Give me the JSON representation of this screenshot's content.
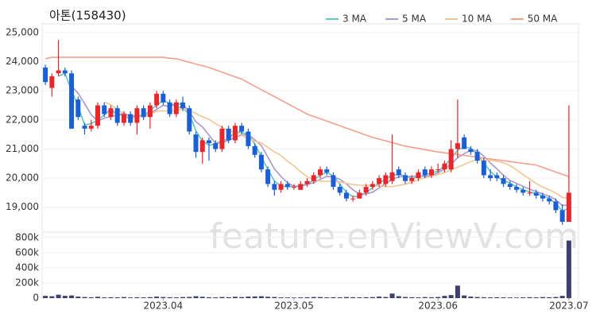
{
  "chart_data": {
    "type": "candlestick",
    "title": "아톤(158430)",
    "watermark": "feature.enViewV.com",
    "up_color": "#e8262b",
    "down_color": "#1a5fd6",
    "grid": true,
    "legend": "top-right",
    "categories": [
      null,
      null,
      null,
      null,
      null,
      null,
      null,
      null,
      null,
      null,
      null,
      null,
      null,
      null,
      null,
      null,
      null,
      null,
      "2023.04",
      null,
      null,
      null,
      null,
      null,
      null,
      null,
      null,
      null,
      null,
      null,
      null,
      null,
      null,
      null,
      null,
      null,
      null,
      null,
      "2023.05",
      null,
      null,
      null,
      null,
      null,
      null,
      null,
      null,
      null,
      null,
      null,
      null,
      null,
      null,
      null,
      null,
      null,
      null,
      null,
      null,
      null,
      "2023.06",
      null,
      null,
      null,
      null,
      null,
      null,
      null,
      null,
      null,
      null,
      null,
      null,
      null,
      null,
      null,
      null,
      null,
      null,
      null,
      "2023.07"
    ],
    "ylim": [
      18200,
      25300
    ],
    "yticks": [
      {
        "value": 19000,
        "label": "19,000"
      },
      {
        "value": 20000,
        "label": "20,000"
      },
      {
        "value": 21000,
        "label": "21,000"
      },
      {
        "value": 22000,
        "label": "22,000"
      },
      {
        "value": 23000,
        "label": "23,000"
      },
      {
        "value": 24000,
        "label": "24,000"
      },
      {
        "value": 25000,
        "label": "25,000"
      }
    ],
    "ohlc": [
      [
        23800,
        23900,
        23200,
        23300
      ],
      [
        23100,
        23600,
        22800,
        23500
      ],
      [
        23600,
        24750,
        23500,
        23700
      ],
      [
        23700,
        23800,
        23500,
        23600
      ],
      [
        23600,
        23700,
        21700,
        21700
      ],
      [
        22700,
        22800,
        22000,
        22100
      ],
      [
        21800,
        21900,
        21500,
        21700
      ],
      [
        21700,
        22000,
        21600,
        21800
      ],
      [
        21800,
        22600,
        21700,
        22500
      ],
      [
        22500,
        22600,
        22100,
        22200
      ],
      [
        22100,
        22500,
        22000,
        22400
      ],
      [
        22400,
        22500,
        21800,
        21900
      ],
      [
        21900,
        22300,
        21800,
        22200
      ],
      [
        22200,
        22300,
        21800,
        21900
      ],
      [
        21900,
        22500,
        21500,
        22400
      ],
      [
        22400,
        22500,
        22000,
        22100
      ],
      [
        22100,
        22600,
        21700,
        22500
      ],
      [
        22500,
        23000,
        22400,
        22900
      ],
      [
        22900,
        23000,
        22500,
        22600
      ],
      [
        22600,
        22700,
        22100,
        22200
      ],
      [
        22200,
        22700,
        22100,
        22600
      ],
      [
        22600,
        22800,
        22300,
        22400
      ],
      [
        22400,
        22500,
        21500,
        21600
      ],
      [
        21500,
        21600,
        20700,
        20900
      ],
      [
        20900,
        21400,
        20500,
        21300
      ],
      [
        21300,
        21400,
        20600,
        21200
      ],
      [
        21200,
        21300,
        20900,
        21000
      ],
      [
        21000,
        21800,
        20900,
        21700
      ],
      [
        21700,
        21800,
        21200,
        21300
      ],
      [
        21300,
        21900,
        21200,
        21800
      ],
      [
        21800,
        21900,
        21500,
        21600
      ],
      [
        21600,
        21700,
        21000,
        21100
      ],
      [
        21100,
        21200,
        20700,
        20800
      ],
      [
        20800,
        20900,
        20200,
        20300
      ],
      [
        20300,
        20400,
        19700,
        19800
      ],
      [
        19800,
        19900,
        19400,
        19600
      ],
      [
        19600,
        19900,
        19500,
        19800
      ],
      [
        19800,
        19900,
        19600,
        19700
      ],
      [
        19700,
        19800,
        19600,
        19700
      ],
      [
        19600,
        19900,
        19600,
        19800
      ],
      [
        19800,
        20000,
        19700,
        19900
      ],
      [
        19900,
        20200,
        19800,
        20100
      ],
      [
        20100,
        20400,
        20000,
        20300
      ],
      [
        20300,
        20400,
        20100,
        20200
      ],
      [
        20100,
        20200,
        19600,
        19700
      ],
      [
        19700,
        19800,
        19400,
        19500
      ],
      [
        19500,
        19600,
        19200,
        19300
      ],
      [
        19300,
        19400,
        19200,
        19300
      ],
      [
        19300,
        19600,
        19300,
        19500
      ],
      [
        19500,
        19800,
        19400,
        19700
      ],
      [
        19700,
        19900,
        19600,
        19800
      ],
      [
        19800,
        20100,
        19700,
        20000
      ],
      [
        19800,
        20200,
        19700,
        20100
      ],
      [
        19900,
        21500,
        19800,
        20200
      ],
      [
        20300,
        20400,
        20000,
        20100
      ],
      [
        20100,
        20200,
        19800,
        19900
      ],
      [
        19900,
        20100,
        19800,
        20000
      ],
      [
        20000,
        20300,
        19900,
        20200
      ],
      [
        20300,
        20400,
        20000,
        20100
      ],
      [
        20100,
        20400,
        20000,
        20300
      ],
      [
        20300,
        20500,
        20200,
        20300
      ],
      [
        20300,
        20600,
        20200,
        20500
      ],
      [
        20300,
        21300,
        20200,
        21000
      ],
      [
        21000,
        22700,
        20700,
        21200
      ],
      [
        21400,
        21500,
        21000,
        21000
      ],
      [
        21000,
        21100,
        20800,
        20900
      ],
      [
        20900,
        21000,
        20500,
        20600
      ],
      [
        20600,
        20700,
        20000,
        20100
      ],
      [
        20100,
        20300,
        19900,
        20000
      ],
      [
        20100,
        20200,
        19900,
        20000
      ],
      [
        20000,
        20100,
        19700,
        19800
      ],
      [
        19800,
        19900,
        19600,
        19700
      ],
      [
        19700,
        19800,
        19500,
        19600
      ],
      [
        19600,
        19700,
        19400,
        19500
      ],
      [
        19500,
        19900,
        19400,
        19500
      ],
      [
        19500,
        19600,
        19300,
        19400
      ],
      [
        19400,
        19500,
        19200,
        19300
      ],
      [
        19300,
        19400,
        19100,
        19200
      ],
      [
        19200,
        19300,
        18800,
        18900
      ],
      [
        18900,
        19100,
        18400,
        18500
      ],
      [
        18500,
        22500,
        18500,
        19500
      ]
    ],
    "series": [
      {
        "name": "3 MA",
        "color": "#5cc8c0",
        "values": [
          null,
          null,
          23500,
          23600,
          23000,
          22470,
          21830,
          21870,
          22000,
          22170,
          22370,
          22170,
          22170,
          22000,
          22170,
          22130,
          22330,
          22500,
          22670,
          22570,
          22470,
          22400,
          22200,
          21630,
          21270,
          21130,
          21170,
          21300,
          21330,
          21600,
          21570,
          21500,
          21170,
          20730,
          20300,
          19900,
          19730,
          19700,
          19730,
          19730,
          19800,
          19930,
          20100,
          20200,
          20070,
          19800,
          19500,
          19370,
          19370,
          19500,
          19670,
          19830,
          19970,
          20100,
          20130,
          20070,
          20000,
          20030,
          20100,
          20200,
          20230,
          20430,
          20670,
          20970,
          21070,
          21030,
          20830,
          20530,
          20230,
          20030,
          19930,
          19830,
          19700,
          19600,
          19530,
          19470,
          19400,
          19300,
          19130,
          18870,
          18970
        ]
      },
      {
        "name": "5 MA",
        "color": "#a898cc",
        "values": [
          null,
          null,
          null,
          null,
          23160,
          22920,
          22560,
          22180,
          21960,
          22060,
          22120,
          22160,
          22240,
          22120,
          22160,
          22100,
          22220,
          22360,
          22500,
          22460,
          22560,
          22540,
          22280,
          21940,
          21760,
          21480,
          21200,
          21220,
          21300,
          21400,
          21480,
          21500,
          21320,
          21120,
          20720,
          20320,
          20060,
          19840,
          19720,
          19720,
          19780,
          19840,
          19960,
          20060,
          20040,
          19960,
          19800,
          19600,
          19460,
          19460,
          19520,
          19660,
          19820,
          19960,
          20040,
          20060,
          20060,
          20080,
          20060,
          20100,
          20180,
          20320,
          20480,
          20700,
          20840,
          20960,
          20940,
          20760,
          20520,
          20320,
          20100,
          19920,
          19820,
          19720,
          19620,
          19540,
          19460,
          19380,
          19260,
          19060,
          19080
        ]
      },
      {
        "name": "10 MA",
        "color": "#f2c694",
        "values": [
          null,
          null,
          null,
          null,
          null,
          null,
          null,
          null,
          null,
          22610,
          22520,
          22360,
          22210,
          22040,
          22110,
          22110,
          22190,
          22300,
          22310,
          22310,
          22330,
          22380,
          22320,
          22220,
          22110,
          22020,
          21870,
          21750,
          21620,
          21580,
          21480,
          21350,
          21270,
          21210,
          21060,
          20900,
          20780,
          20580,
          20420,
          20220,
          20050,
          19950,
          19900,
          19890,
          19880,
          19870,
          19820,
          19780,
          19760,
          19750,
          19740,
          19730,
          19710,
          19710,
          19750,
          19790,
          19860,
          19950,
          20010,
          20070,
          20120,
          20190,
          20280,
          20380,
          20470,
          20570,
          20630,
          20620,
          20610,
          20580,
          20530,
          20430,
          20290,
          20120,
          19970,
          19820,
          19690,
          19600,
          19490,
          19340,
          19310
        ]
      },
      {
        "name": "50 MA",
        "color": "#f4a08e",
        "values": [
          24100,
          24150,
          24150,
          24150,
          24150,
          24150,
          24150,
          24150,
          24150,
          24150,
          24150,
          24150,
          24150,
          24150,
          24150,
          24150,
          24150,
          24150,
          24150,
          24120,
          24100,
          24040,
          23980,
          23920,
          23860,
          23800,
          23720,
          23640,
          23560,
          23480,
          23400,
          23280,
          23160,
          23040,
          22920,
          22800,
          22680,
          22560,
          22440,
          22320,
          22200,
          22120,
          22040,
          21960,
          21880,
          21800,
          21720,
          21640,
          21560,
          21480,
          21400,
          21340,
          21280,
          21220,
          21160,
          21100,
          21060,
          21020,
          20980,
          20940,
          20900,
          20870,
          20840,
          20810,
          20780,
          20750,
          20720,
          20690,
          20660,
          20630,
          20600,
          20570,
          20540,
          20510,
          20480,
          20450,
          20370,
          20290,
          20210,
          20130,
          20050
        ]
      }
    ],
    "volume": {
      "color": "#3d3f6e",
      "ylim": [
        0,
        850000
      ],
      "yticks": [
        0,
        {
          "value": 200000,
          "label": "200k"
        },
        {
          "value": 400000,
          "label": "400k"
        },
        {
          "value": 600000,
          "label": "600k"
        },
        {
          "value": 800000,
          "label": "800k"
        }
      ],
      "values": [
        30000,
        25000,
        45000,
        30000,
        35000,
        20000,
        15000,
        12000,
        18000,
        10000,
        12000,
        10000,
        14000,
        9000,
        11000,
        10000,
        13000,
        20000,
        15000,
        12000,
        10000,
        14000,
        16000,
        25000,
        18000,
        12000,
        10000,
        15000,
        12000,
        18000,
        14000,
        20000,
        22000,
        25000,
        18000,
        15000,
        10000,
        9000,
        8000,
        10000,
        12000,
        15000,
        14000,
        10000,
        12000,
        10000,
        14000,
        12000,
        10000,
        12000,
        14000,
        20000,
        15000,
        60000,
        25000,
        15000,
        12000,
        10000,
        14000,
        12000,
        15000,
        30000,
        40000,
        165000,
        35000,
        20000,
        15000,
        12000,
        10000,
        12000,
        10000,
        9000,
        8000,
        10000,
        12000,
        10000,
        14000,
        12000,
        15000,
        30000,
        760000
      ]
    }
  }
}
